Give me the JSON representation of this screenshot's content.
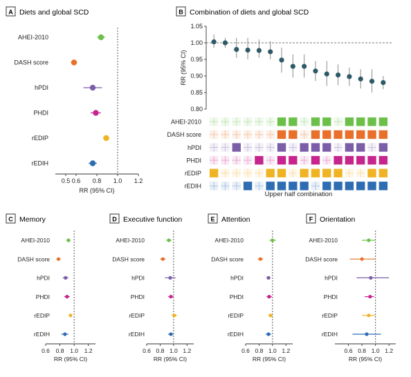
{
  "panels": {
    "A": {
      "letter": "A",
      "title": "Diets and global SCD"
    },
    "B": {
      "letter": "B",
      "title": "Combination of diets and global SCD"
    },
    "C": {
      "letter": "C",
      "title": "Memory"
    },
    "D": {
      "letter": "D",
      "title": "Executive function"
    },
    "E": {
      "letter": "E",
      "title": "Attention"
    },
    "F": {
      "letter": "F",
      "title": "Orientation"
    }
  },
  "colors": {
    "AHEI-2010": "#6cc04a",
    "DASH score": "#e8702a",
    "hPDI": "#7b5ea7",
    "PHDI": "#c7258e",
    "rEDIP": "#f0b323",
    "rEDIH": "#2f6db3",
    "panelB_point": "#2d5a66",
    "error": "#888888"
  },
  "chart_data": [
    {
      "id": "A",
      "type": "scatter",
      "categories": [
        "AHEI-2010",
        "DASH score",
        "hPDI",
        "PHDI",
        "rEDIP",
        "rEDIH"
      ],
      "series": [
        {
          "values": [
            0.84,
            0.58,
            0.76,
            0.79,
            0.89,
            0.76
          ],
          "ci_low": [
            0.8,
            0.55,
            0.67,
            0.74,
            0.86,
            0.72
          ],
          "ci_high": [
            0.88,
            0.61,
            0.85,
            0.84,
            0.92,
            0.8
          ]
        }
      ],
      "xlabel": "RR (95% CI)",
      "xlim": [
        0.4,
        1.2
      ],
      "xticks": [
        "0.5",
        "0.6",
        "0.8",
        "1.0",
        "1.2"
      ],
      "xtick_values": [
        0.5,
        0.6,
        0.8,
        1.0,
        1.2
      ],
      "reference": 1.0
    },
    {
      "id": "B",
      "type": "scatter",
      "x": [
        1,
        2,
        3,
        4,
        5,
        6,
        7,
        8,
        9,
        10,
        11,
        12,
        13,
        14,
        15,
        16
      ],
      "series": [
        {
          "values": [
            1.003,
            1.0,
            0.98,
            0.978,
            0.977,
            0.973,
            0.948,
            0.929,
            0.929,
            0.915,
            0.906,
            0.903,
            0.898,
            0.891,
            0.884,
            0.88
          ],
          "ci_low": [
            0.985,
            0.985,
            0.955,
            0.95,
            0.955,
            0.95,
            0.91,
            0.895,
            0.895,
            0.885,
            0.87,
            0.872,
            0.87,
            0.862,
            0.85,
            0.86
          ],
          "ci_high": [
            1.025,
            1.015,
            1.015,
            1.015,
            1.01,
            1.005,
            0.985,
            0.965,
            0.965,
            0.945,
            0.945,
            0.935,
            0.925,
            0.92,
            0.92,
            0.9
          ]
        }
      ],
      "ylabel": "RR (95% CI)",
      "ylim": [
        0.8,
        1.05
      ],
      "yticks": [
        "0.80",
        "0.85",
        "0.90",
        "0.95",
        "1.00",
        "1.05"
      ],
      "ytick_values": [
        0.8,
        0.85,
        0.9,
        0.95,
        1.0,
        1.05
      ],
      "reference": 1.0,
      "grid_rows": [
        "AHEI-2010",
        "DASH score",
        "hPDI",
        "PHDI",
        "rEDIP",
        "rEDIH"
      ],
      "grid": [
        [
          0,
          0,
          0,
          0,
          0,
          0,
          1,
          1,
          0,
          1,
          1,
          0,
          1,
          1,
          1,
          1
        ],
        [
          0,
          0,
          0,
          0,
          0,
          0,
          1,
          1,
          0,
          1,
          1,
          1,
          1,
          1,
          1,
          1
        ],
        [
          0,
          0,
          1,
          0,
          0,
          0,
          1,
          0,
          1,
          1,
          1,
          0,
          1,
          1,
          0,
          1
        ],
        [
          0,
          0,
          0,
          0,
          1,
          0,
          1,
          1,
          0,
          1,
          0,
          1,
          1,
          1,
          1,
          1
        ],
        [
          1,
          0,
          0,
          0,
          0,
          1,
          1,
          0,
          1,
          1,
          1,
          1,
          0,
          0,
          1,
          1
        ],
        [
          0,
          0,
          0,
          1,
          0,
          1,
          1,
          1,
          1,
          0,
          1,
          1,
          1,
          1,
          1,
          1
        ]
      ],
      "grid_caption": "Upper half combination"
    },
    {
      "id": "C",
      "type": "scatter",
      "categories": [
        "AHEI-2010",
        "DASH score",
        "hPDI",
        "PHDI",
        "rEDIP",
        "rEDIH"
      ],
      "series": [
        {
          "values": [
            0.92,
            0.78,
            0.88,
            0.9,
            0.95,
            0.87
          ],
          "ci_low": [
            0.89,
            0.75,
            0.84,
            0.86,
            0.93,
            0.82
          ],
          "ci_high": [
            0.95,
            0.81,
            0.92,
            0.94,
            0.97,
            0.92
          ]
        }
      ],
      "xlabel": "RR (95% CI)",
      "xlim": [
        0.6,
        1.3
      ],
      "xticks": [
        "0.6",
        "0.8",
        "1.0",
        "1.2"
      ],
      "xtick_values": [
        0.6,
        0.8,
        1.0,
        1.2
      ],
      "reference": 1.0
    },
    {
      "id": "D",
      "type": "scatter",
      "categories": [
        "AHEI-2010",
        "DASH score",
        "hPDI",
        "PHDI",
        "rEDIP",
        "rEDIH"
      ],
      "series": [
        {
          "values": [
            0.93,
            0.84,
            0.95,
            0.96,
            1.01,
            0.96
          ],
          "ci_low": [
            0.89,
            0.8,
            0.87,
            0.92,
            0.97,
            0.92
          ],
          "ci_high": [
            0.97,
            0.88,
            1.03,
            1.0,
            1.05,
            1.0
          ]
        }
      ],
      "xlabel": "RR (95% CI)",
      "xlim": [
        0.6,
        1.3
      ],
      "xticks": [
        "0.6",
        "0.8",
        "1.0",
        "1.2"
      ],
      "xtick_values": [
        0.6,
        0.8,
        1.0,
        1.2
      ],
      "reference": 1.0
    },
    {
      "id": "E",
      "type": "scatter",
      "categories": [
        "AHEI-2010",
        "DASH score",
        "hPDI",
        "PHDI",
        "rEDIP",
        "rEDIH"
      ],
      "series": [
        {
          "values": [
            1.0,
            0.82,
            0.94,
            0.95,
            0.97,
            0.94
          ],
          "ci_low": [
            0.95,
            0.78,
            0.91,
            0.91,
            0.94,
            0.9
          ],
          "ci_high": [
            1.05,
            0.86,
            0.97,
            0.99,
            1.0,
            0.98
          ]
        }
      ],
      "xlabel": "RR (95% CI)",
      "xlim": [
        0.6,
        1.3
      ],
      "xticks": [
        "0.6",
        "0.8",
        "1.0",
        "1.2"
      ],
      "xtick_values": [
        0.6,
        0.8,
        1.0,
        1.2
      ],
      "reference": 1.0
    },
    {
      "id": "F",
      "type": "scatter",
      "categories": [
        "AHEI-2010",
        "DASH score",
        "hPDI",
        "PHDI",
        "rEDIP",
        "rEDIH"
      ],
      "series": [
        {
          "values": [
            0.9,
            0.8,
            0.93,
            0.92,
            0.9,
            0.87
          ],
          "ci_low": [
            0.8,
            0.62,
            0.72,
            0.84,
            0.8,
            0.66
          ],
          "ci_high": [
            1.0,
            1.0,
            1.2,
            0.98,
            1.0,
            1.08
          ]
        }
      ],
      "xlabel": "RR (95% CI)",
      "xlim": [
        0.4,
        1.3
      ],
      "xticks": [
        "0.6",
        "0.8",
        "1.0",
        "1.2"
      ],
      "xtick_values": [
        0.6,
        0.8,
        1.0,
        1.2
      ],
      "reference": 1.0
    }
  ]
}
